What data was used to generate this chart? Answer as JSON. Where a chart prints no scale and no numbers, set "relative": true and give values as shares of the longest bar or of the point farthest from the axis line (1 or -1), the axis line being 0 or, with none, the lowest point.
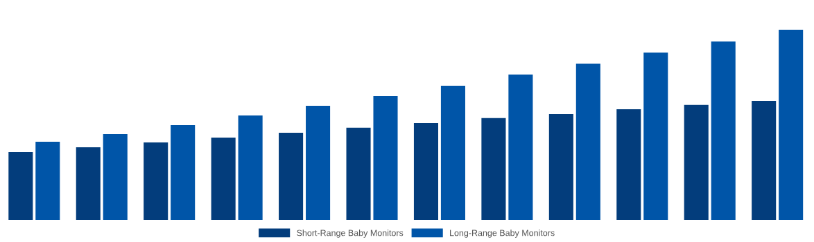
{
  "chart_data": {
    "type": "bar",
    "relative": true,
    "legend": "bottom",
    "grid": false,
    "categories": [
      null,
      null,
      null,
      null,
      null,
      null,
      null,
      null,
      null,
      null,
      null,
      null
    ],
    "series": [
      {
        "name": "Short-Range Baby Monitors",
        "color": "#033d7c",
        "values": [
          0.356,
          0.382,
          0.407,
          0.433,
          0.458,
          0.484,
          0.509,
          0.535,
          0.556,
          0.582,
          0.604,
          0.625
        ]
      },
      {
        "name": "Long-Range Baby Monitors",
        "color": "#0055a8",
        "values": [
          0.411,
          0.451,
          0.498,
          0.549,
          0.6,
          0.651,
          0.705,
          0.764,
          0.822,
          0.88,
          0.938,
          1.0
        ]
      }
    ]
  }
}
